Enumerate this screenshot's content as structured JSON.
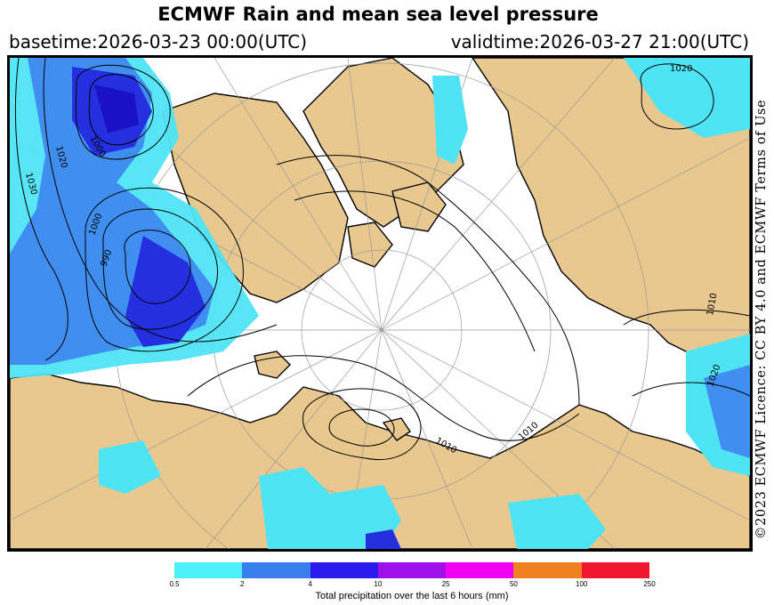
{
  "header": {
    "title": "ECMWF Rain and mean sea level pressure",
    "basetime": "basetime:2026-03-23 00:00(UTC)",
    "validtime": "validtime:2026-03-27 21:00(UTC)"
  },
  "credit": "©2023 ECMWF Licence: CC BY 4.0 and ECMWF Terms of Use",
  "map": {
    "isobar_labels": [
      "1030",
      "1020",
      "1000",
      "1000",
      "990",
      "1010",
      "1010",
      "1010",
      "1020",
      "1020"
    ],
    "colors": {
      "land": "#e8c88e",
      "coast": "#000000",
      "graticule": "#9a9a9a",
      "isobar": "#000000",
      "rain_0_5_2": "#4fe4f4",
      "rain_2_4": "#3f8ef0",
      "rain_4_10": "#2430e0",
      "rain_10_25": "#1a10c8"
    }
  },
  "legend": {
    "title": "Total precipitation over the last 6 hours (mm)",
    "ticks": [
      "0.5",
      "2",
      "4",
      "10",
      "25",
      "50",
      "100",
      "250"
    ],
    "colors": [
      "#4cf0f8",
      "#3a80ec",
      "#2a1cec",
      "#a010e8",
      "#f000f0",
      "#f08020",
      "#f01830"
    ]
  }
}
